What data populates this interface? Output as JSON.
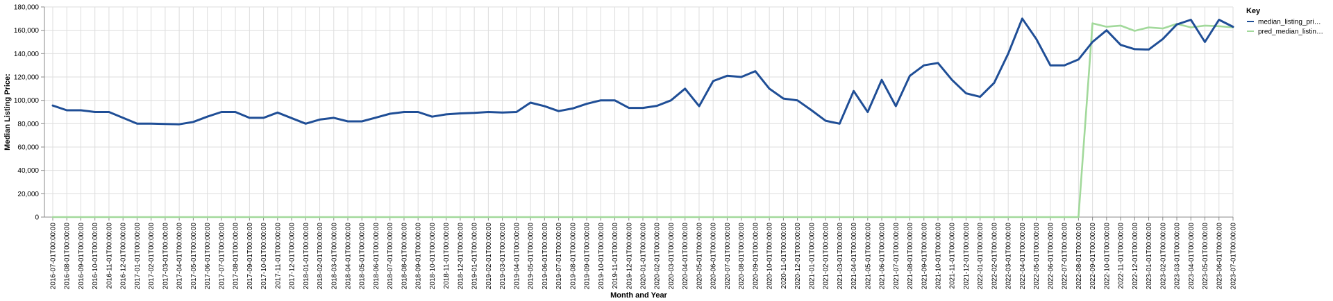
{
  "chart_data": {
    "type": "line",
    "xlabel": "Month and Year",
    "ylabel": "Median Listing Price:",
    "ylim": [
      0,
      180000
    ],
    "yticks": [
      0,
      20000,
      40000,
      60000,
      80000,
      100000,
      120000,
      140000,
      160000,
      180000
    ],
    "ytick_labels": [
      "0",
      "20,000",
      "40,000",
      "60,000",
      "80,000",
      "100,000",
      "120,000",
      "140,000",
      "160,000",
      "180,000"
    ],
    "grid": true,
    "legend": {
      "title": "Key",
      "position": "top-right"
    },
    "categories": [
      "2016-07-01T00:00:00",
      "2016-08-01T00:00:00",
      "2016-09-01T00:00:00",
      "2016-10-01T00:00:00",
      "2016-11-01T00:00:00",
      "2016-12-01T00:00:00",
      "2017-01-01T00:00:00",
      "2017-02-01T00:00:00",
      "2017-03-01T00:00:00",
      "2017-04-01T00:00:00",
      "2017-05-01T00:00:00",
      "2017-06-01T00:00:00",
      "2017-07-01T00:00:00",
      "2017-08-01T00:00:00",
      "2017-09-01T00:00:00",
      "2017-10-01T00:00:00",
      "2017-11-01T00:00:00",
      "2017-12-01T00:00:00",
      "2018-01-01T00:00:00",
      "2018-02-01T00:00:00",
      "2018-03-01T00:00:00",
      "2018-04-01T00:00:00",
      "2018-05-01T00:00:00",
      "2018-06-01T00:00:00",
      "2018-07-01T00:00:00",
      "2018-08-01T00:00:00",
      "2018-09-01T00:00:00",
      "2018-10-01T00:00:00",
      "2018-11-01T00:00:00",
      "2018-12-01T00:00:00",
      "2019-01-01T00:00:00",
      "2019-02-01T00:00:00",
      "2019-03-01T00:00:00",
      "2019-04-01T00:00:00",
      "2019-05-01T00:00:00",
      "2019-06-01T00:00:00",
      "2019-07-01T00:00:00",
      "2019-08-01T00:00:00",
      "2019-09-01T00:00:00",
      "2019-10-01T00:00:00",
      "2019-11-01T00:00:00",
      "2019-12-01T00:00:00",
      "2020-01-01T00:00:00",
      "2020-02-01T00:00:00",
      "2020-03-01T00:00:00",
      "2020-04-01T00:00:00",
      "2020-05-01T00:00:00",
      "2020-06-01T00:00:00",
      "2020-07-01T00:00:00",
      "2020-08-01T00:00:00",
      "2020-09-01T00:00:00",
      "2020-10-01T00:00:00",
      "2020-11-01T00:00:00",
      "2020-12-01T00:00:00",
      "2021-01-01T00:00:00",
      "2021-02-01T00:00:00",
      "2021-03-01T00:00:00",
      "2021-04-01T00:00:00",
      "2021-05-01T00:00:00",
      "2021-06-01T00:00:00",
      "2021-07-01T00:00:00",
      "2021-08-01T00:00:00",
      "2021-09-01T00:00:00",
      "2021-10-01T00:00:00",
      "2021-11-01T00:00:00",
      "2021-12-01T00:00:00",
      "2022-01-01T00:00:00",
      "2022-02-01T00:00:00",
      "2022-03-01T00:00:00",
      "2022-04-01T00:00:00",
      "2022-05-01T00:00:00",
      "2022-06-01T00:00:00",
      "2022-07-01T00:00:00",
      "2022-08-01T00:00:00",
      "2022-09-01T00:00:00",
      "2022-10-01T00:00:00",
      "2022-11-01T00:00:00",
      "2022-12-01T00:00:00",
      "2023-01-01T00:00:00",
      "2023-02-01T00:00:00",
      "2023-03-01T00:00:00",
      "2023-04-01T00:00:00",
      "2023-05-01T00:00:00",
      "2023-06-01T00:00:00",
      "2023-07-01T00:00:00"
    ],
    "series": [
      {
        "name": "median_listing_pri…",
        "color": "#1f4e96",
        "values": [
          95500,
          91500,
          91500,
          90000,
          90000,
          85000,
          80000,
          80000,
          79800,
          79500,
          81500,
          86000,
          90000,
          90000,
          85000,
          85000,
          89500,
          84800,
          80000,
          83500,
          85000,
          82000,
          82000,
          85200,
          88500,
          90000,
          90000,
          86000,
          88000,
          88800,
          89200,
          90000,
          89500,
          90000,
          98000,
          95000,
          90800,
          93000,
          97000,
          100000,
          100000,
          93500,
          93500,
          95300,
          100000,
          110000,
          95000,
          116500,
          121000,
          120000,
          125000,
          110000,
          101500,
          100000,
          91500,
          82500,
          80000,
          108000,
          90000,
          117500,
          95000,
          121000,
          130000,
          132000,
          117500,
          106000,
          103000,
          115000,
          140000,
          170000,
          152500,
          130000,
          130000,
          135000,
          150000,
          160000,
          147500,
          143800,
          143500,
          152500,
          165000,
          169000,
          150000,
          169000,
          163000
        ]
      },
      {
        "name": "pred_median_listin…",
        "color": "#a2d99b",
        "values": [
          0,
          0,
          0,
          0,
          0,
          0,
          0,
          0,
          0,
          0,
          0,
          0,
          0,
          0,
          0,
          0,
          0,
          0,
          0,
          0,
          0,
          0,
          0,
          0,
          0,
          0,
          0,
          0,
          0,
          0,
          0,
          0,
          0,
          0,
          0,
          0,
          0,
          0,
          0,
          0,
          0,
          0,
          0,
          0,
          0,
          0,
          0,
          0,
          0,
          0,
          0,
          0,
          0,
          0,
          0,
          0,
          0,
          0,
          0,
          0,
          0,
          0,
          0,
          0,
          0,
          0,
          0,
          0,
          0,
          0,
          0,
          0,
          0,
          0,
          166000,
          163000,
          164000,
          159500,
          162500,
          161500,
          165500,
          162500,
          164000,
          163500,
          162500
        ]
      }
    ]
  }
}
